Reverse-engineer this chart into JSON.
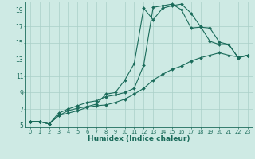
{
  "xlabel": "Humidex (Indice chaleur)",
  "bg_color": "#ceeae4",
  "grid_color": "#aacfc8",
  "line_color": "#1a6b5a",
  "xlim": [
    -0.5,
    23.5
  ],
  "ylim": [
    4.8,
    20.0
  ],
  "xticks": [
    0,
    1,
    2,
    3,
    4,
    5,
    6,
    7,
    8,
    9,
    10,
    11,
    12,
    13,
    14,
    15,
    16,
    17,
    18,
    19,
    20,
    21,
    22,
    23
  ],
  "yticks": [
    5,
    7,
    9,
    11,
    13,
    15,
    17,
    19
  ],
  "line1_x": [
    0,
    1,
    2,
    3,
    4,
    5,
    6,
    7,
    8,
    9,
    10,
    11,
    12,
    13,
    14,
    15,
    16,
    17,
    18,
    19,
    20,
    21,
    22,
    23
  ],
  "line1_y": [
    5.5,
    5.5,
    5.2,
    6.2,
    6.8,
    7.1,
    7.3,
    7.6,
    8.8,
    9.0,
    10.5,
    12.5,
    19.2,
    17.8,
    19.2,
    19.5,
    19.7,
    18.6,
    17.0,
    15.2,
    14.8,
    14.8,
    13.2,
    13.5
  ],
  "line2_x": [
    0,
    1,
    2,
    3,
    4,
    5,
    6,
    7,
    8,
    9,
    10,
    11,
    12,
    13,
    14,
    15,
    16,
    17,
    18,
    19,
    20,
    21,
    22,
    23
  ],
  "line2_y": [
    5.5,
    5.5,
    5.2,
    6.5,
    7.0,
    7.4,
    7.8,
    8.0,
    8.5,
    8.7,
    9.0,
    9.5,
    12.3,
    19.3,
    19.5,
    19.7,
    19.0,
    16.8,
    16.9,
    16.8,
    15.1,
    14.8,
    13.2,
    13.5
  ],
  "line3_x": [
    0,
    1,
    2,
    3,
    4,
    5,
    6,
    7,
    8,
    9,
    10,
    11,
    12,
    13,
    14,
    15,
    16,
    17,
    18,
    19,
    20,
    21,
    22,
    23
  ],
  "line3_y": [
    5.5,
    5.5,
    5.2,
    6.2,
    6.5,
    6.8,
    7.2,
    7.4,
    7.5,
    7.8,
    8.2,
    8.8,
    9.5,
    10.5,
    11.2,
    11.8,
    12.2,
    12.8,
    13.2,
    13.5,
    13.8,
    13.5,
    13.3,
    13.5
  ]
}
